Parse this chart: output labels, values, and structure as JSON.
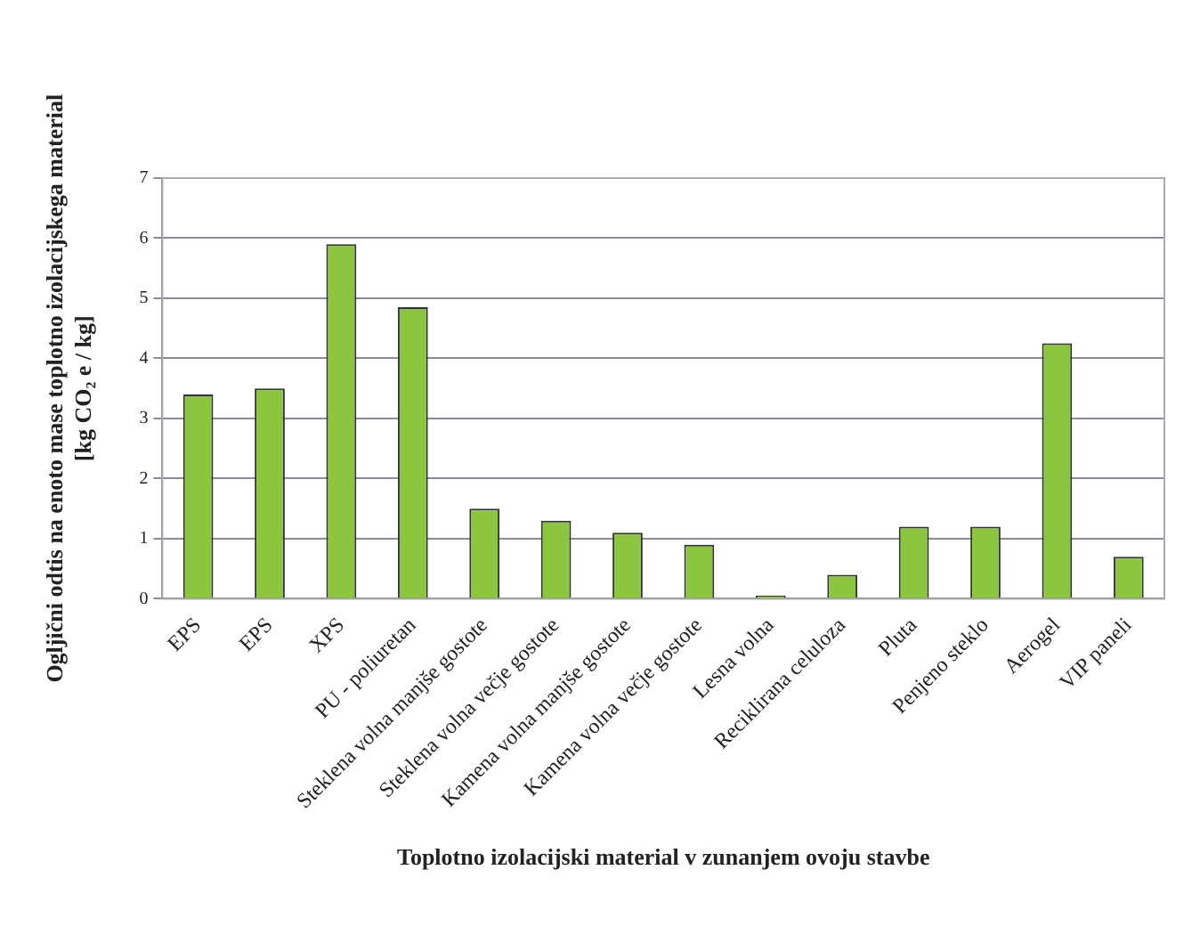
{
  "chart_data": {
    "type": "bar",
    "categories": [
      "EPS",
      "EPS",
      "XPS",
      "PU - poliuretan",
      "Steklena volna manjše gostote",
      "Steklena volna večje gostote",
      "Kamena volna manjše gostote",
      "Kamena volna večje gostote",
      "Lesna volna",
      "Reciklirana celuloza",
      "Pluta",
      "Penjeno steklo",
      "Aerogel",
      "VIP paneli"
    ],
    "values": [
      3.4,
      3.5,
      5.9,
      4.85,
      1.5,
      1.3,
      1.1,
      0.9,
      0.05,
      0.4,
      1.2,
      1.2,
      4.25,
      0.7
    ],
    "color": "#8cc63e",
    "xlabel": "Toplotno izolacijski material v zunanjem ovoju stavbe",
    "ylabel": "Ogljični odtis na enoto mase toplotno izolacijskega material\n[kg CO₂ e / kg]",
    "ylim": [
      0,
      7
    ],
    "yticks": [
      0,
      1,
      2,
      3,
      4,
      5,
      6,
      7
    ],
    "grid": "y",
    "legend": false
  }
}
